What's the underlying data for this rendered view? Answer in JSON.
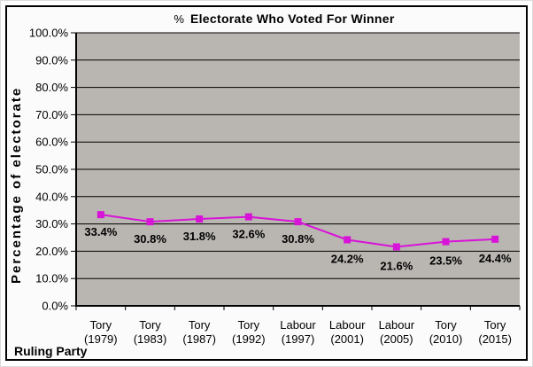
{
  "chart_data": {
    "type": "line",
    "title": {
      "prefix": "%",
      "text": "Electorate Who Voted For Winner"
    },
    "xlabel": "Ruling Party",
    "ylabel": "Percentage of electorate",
    "categories": [
      {
        "party": "Tory",
        "year": "(1979)"
      },
      {
        "party": "Tory",
        "year": "(1983)"
      },
      {
        "party": "Tory",
        "year": "(1987)"
      },
      {
        "party": "Tory",
        "year": "(1992)"
      },
      {
        "party": "Labour",
        "year": "(1997)"
      },
      {
        "party": "Labour",
        "year": "(2001)"
      },
      {
        "party": "Labour",
        "year": "(2005)"
      },
      {
        "party": "Tory",
        "year": "(2010)"
      },
      {
        "party": "Tory",
        "year": "(2015)"
      }
    ],
    "series": [
      {
        "name": "% electorate who voted for winner",
        "values": [
          33.4,
          30.8,
          31.8,
          32.6,
          30.8,
          24.2,
          21.6,
          23.5,
          24.4
        ],
        "labels": [
          "33.4%",
          "30.8%",
          "31.8%",
          "32.6%",
          "30.8%",
          "24.2%",
          "21.6%",
          "23.5%",
          "24.4%"
        ],
        "color": "#D813D8"
      }
    ],
    "y_axis": {
      "min": 0,
      "max": 100,
      "step": 10,
      "tick_decimals": 1,
      "tick_suffix": "%"
    },
    "grid": true,
    "legend": false,
    "colors": {
      "plot_bg": "#B9B5B1",
      "gridline": "#000000",
      "axis": "#000000",
      "text": "#000000",
      "chart_bg": "#FBFBFB",
      "frame_border": "#000000"
    }
  }
}
